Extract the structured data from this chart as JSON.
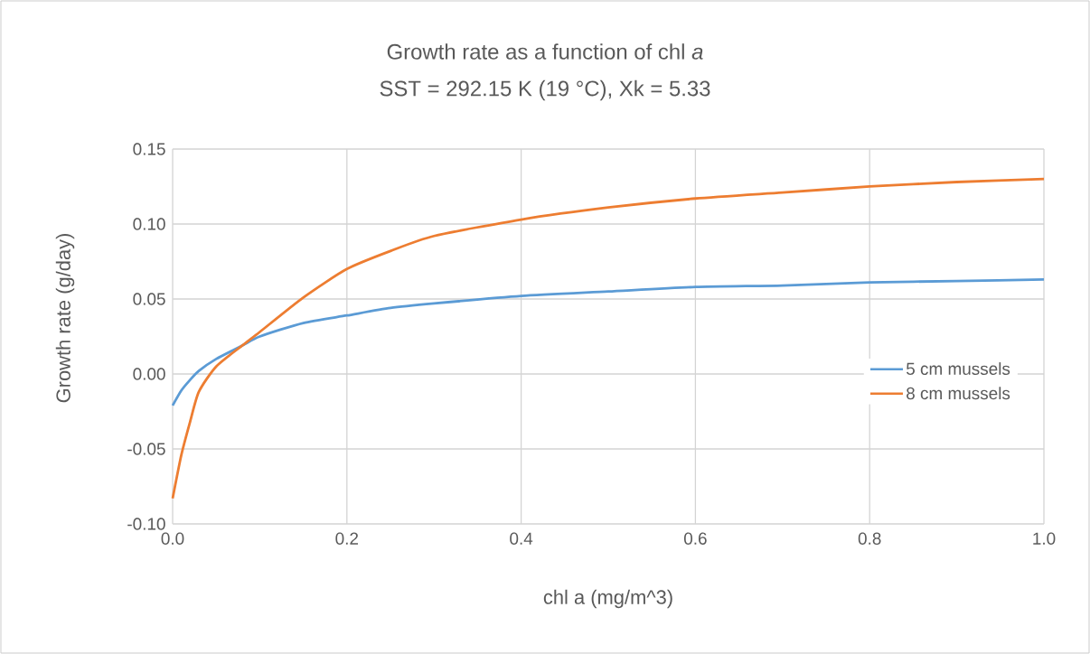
{
  "chart_data": {
    "type": "line",
    "title": "Growth rate as a function of chl *a*",
    "subtitle": "SST = 292.15 K (19 °C), Xk = 5.33",
    "xlabel": "chl a (mg/m^3)",
    "ylabel": "Growth rate (g/day)",
    "x": [
      0,
      0.01,
      0.02,
      0.03,
      0.05,
      0.08,
      0.1,
      0.15,
      0.2,
      0.25,
      0.3,
      0.4,
      0.5,
      0.6,
      0.7,
      0.8,
      0.9,
      1.0
    ],
    "series": [
      {
        "name": "5 cm mussels",
        "color": "#5b9bd5",
        "values": [
          -0.021,
          -0.011,
          -0.004,
          0.002,
          0.01,
          0.019,
          0.025,
          0.034,
          0.039,
          0.044,
          0.047,
          0.052,
          0.055,
          0.058,
          0.059,
          0.061,
          0.062,
          0.063
        ]
      },
      {
        "name": "8 cm mussels",
        "color": "#ed7d31",
        "values": [
          -0.083,
          -0.054,
          -0.032,
          -0.012,
          0.005,
          0.019,
          0.028,
          0.051,
          0.07,
          0.082,
          0.092,
          0.103,
          0.111,
          0.117,
          0.121,
          0.125,
          0.128,
          0.13
        ]
      }
    ],
    "xlim": [
      0,
      1.0
    ],
    "ylim": [
      -0.1,
      0.15
    ],
    "xticks": [
      {
        "value": 0,
        "label": "0.0"
      },
      {
        "value": 0.2,
        "label": "0.2"
      },
      {
        "value": 0.4,
        "label": "0.4"
      },
      {
        "value": 0.6,
        "label": "0.6"
      },
      {
        "value": 0.8,
        "label": "0.8"
      },
      {
        "value": 1.0,
        "label": "1.0"
      }
    ],
    "yticks": [
      {
        "value": -0.1,
        "label": "-0.10"
      },
      {
        "value": -0.05,
        "label": "-0.05"
      },
      {
        "value": 0,
        "label": "0.00"
      },
      {
        "value": 0.05,
        "label": "0.05"
      },
      {
        "value": 0.1,
        "label": "0.10"
      },
      {
        "value": 0.15,
        "label": "0.15"
      }
    ],
    "grid": true,
    "legend": "right",
    "marker": "none",
    "line_style": "solid"
  }
}
